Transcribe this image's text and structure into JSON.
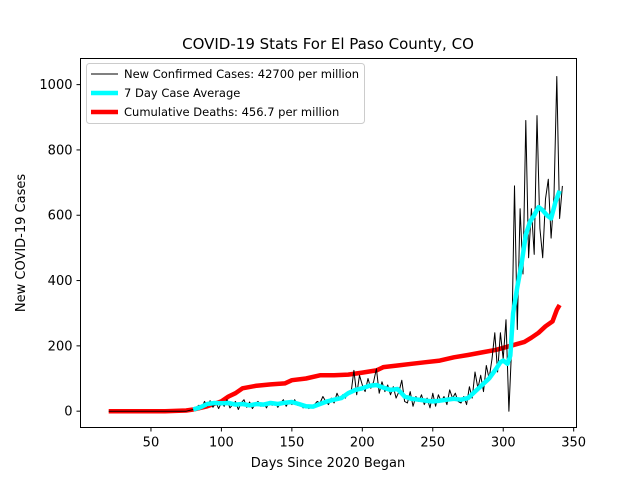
{
  "chart_data": {
    "type": "line",
    "title": "COVID-19 Stats For El Paso County, CO",
    "xlabel": "Days Since 2020 Began",
    "ylabel": "New COVID-19 Cases",
    "xlim": [
      0,
      352
    ],
    "ylim": [
      -50,
      1080
    ],
    "xticks": [
      50,
      100,
      150,
      200,
      250,
      300,
      350
    ],
    "yticks": [
      0,
      200,
      400,
      600,
      800,
      1000
    ],
    "grid": false,
    "legend_position": "top-left",
    "series": [
      {
        "name": "New Confirmed Cases: 42700 per million",
        "color": "#000000",
        "style": "thin-line",
        "points": [
          [
            20,
            0
          ],
          [
            60,
            0
          ],
          [
            75,
            0
          ],
          [
            80,
            5
          ],
          [
            84,
            18
          ],
          [
            86,
            10
          ],
          [
            88,
            30
          ],
          [
            90,
            15
          ],
          [
            92,
            32
          ],
          [
            94,
            12
          ],
          [
            96,
            28
          ],
          [
            98,
            8
          ],
          [
            100,
            26
          ],
          [
            102,
            15
          ],
          [
            104,
            35
          ],
          [
            106,
            10
          ],
          [
            108,
            20
          ],
          [
            110,
            30
          ],
          [
            112,
            5
          ],
          [
            114,
            25
          ],
          [
            116,
            35
          ],
          [
            118,
            12
          ],
          [
            120,
            28
          ],
          [
            122,
            8
          ],
          [
            124,
            22
          ],
          [
            126,
            30
          ],
          [
            128,
            15
          ],
          [
            130,
            25
          ],
          [
            132,
            10
          ],
          [
            134,
            30
          ],
          [
            136,
            18
          ],
          [
            138,
            28
          ],
          [
            140,
            12
          ],
          [
            142,
            25
          ],
          [
            144,
            35
          ],
          [
            146,
            15
          ],
          [
            148,
            30
          ],
          [
            150,
            20
          ],
          [
            152,
            35
          ],
          [
            154,
            18
          ],
          [
            156,
            25
          ],
          [
            158,
            10
          ],
          [
            160,
            18
          ],
          [
            162,
            8
          ],
          [
            164,
            15
          ],
          [
            166,
            20
          ],
          [
            168,
            30
          ],
          [
            170,
            25
          ],
          [
            172,
            45
          ],
          [
            174,
            30
          ],
          [
            176,
            20
          ],
          [
            178,
            40
          ],
          [
            180,
            25
          ],
          [
            182,
            55
          ],
          [
            184,
            35
          ],
          [
            186,
            50
          ],
          [
            188,
            40
          ],
          [
            190,
            60
          ],
          [
            192,
            55
          ],
          [
            194,
            125
          ],
          [
            196,
            50
          ],
          [
            198,
            110
          ],
          [
            200,
            80
          ],
          [
            202,
            60
          ],
          [
            204,
            100
          ],
          [
            206,
            70
          ],
          [
            208,
            90
          ],
          [
            210,
            130
          ],
          [
            212,
            55
          ],
          [
            214,
            90
          ],
          [
            216,
            60
          ],
          [
            218,
            80
          ],
          [
            220,
            50
          ],
          [
            222,
            75
          ],
          [
            224,
            40
          ],
          [
            226,
            60
          ],
          [
            228,
            95
          ],
          [
            230,
            30
          ],
          [
            232,
            25
          ],
          [
            234,
            60
          ],
          [
            236,
            15
          ],
          [
            238,
            45
          ],
          [
            240,
            30
          ],
          [
            242,
            50
          ],
          [
            244,
            20
          ],
          [
            246,
            40
          ],
          [
            248,
            10
          ],
          [
            250,
            55
          ],
          [
            252,
            15
          ],
          [
            254,
            50
          ],
          [
            256,
            30
          ],
          [
            258,
            45
          ],
          [
            260,
            20
          ],
          [
            262,
            65
          ],
          [
            264,
            40
          ],
          [
            266,
            55
          ],
          [
            268,
            30
          ],
          [
            270,
            25
          ],
          [
            272,
            45
          ],
          [
            274,
            20
          ],
          [
            276,
            75
          ],
          [
            278,
            40
          ],
          [
            280,
            120
          ],
          [
            282,
            70
          ],
          [
            284,
            110
          ],
          [
            286,
            60
          ],
          [
            288,
            140
          ],
          [
            290,
            100
          ],
          [
            292,
            160
          ],
          [
            294,
            240
          ],
          [
            296,
            120
          ],
          [
            298,
            240
          ],
          [
            300,
            160
          ],
          [
            302,
            280
          ],
          [
            304,
            0
          ],
          [
            306,
            200
          ],
          [
            308,
            690
          ],
          [
            310,
            250
          ],
          [
            312,
            620
          ],
          [
            314,
            420
          ],
          [
            316,
            890
          ],
          [
            318,
            470
          ],
          [
            320,
            620
          ],
          [
            322,
            480
          ],
          [
            324,
            905
          ],
          [
            326,
            560
          ],
          [
            328,
            470
          ],
          [
            330,
            650
          ],
          [
            332,
            710
          ],
          [
            334,
            530
          ],
          [
            336,
            660
          ],
          [
            338,
            1025
          ],
          [
            340,
            590
          ],
          [
            342,
            690
          ]
        ]
      },
      {
        "name": "7 Day Case Average",
        "color": "#00ffff",
        "style": "thick-line",
        "points": [
          [
            80,
            5
          ],
          [
            85,
            12
          ],
          [
            90,
            22
          ],
          [
            95,
            25
          ],
          [
            100,
            24
          ],
          [
            105,
            25
          ],
          [
            110,
            20
          ],
          [
            115,
            22
          ],
          [
            120,
            18
          ],
          [
            125,
            22
          ],
          [
            130,
            20
          ],
          [
            135,
            25
          ],
          [
            140,
            22
          ],
          [
            145,
            26
          ],
          [
            150,
            28
          ],
          [
            155,
            22
          ],
          [
            160,
            15
          ],
          [
            165,
            14
          ],
          [
            170,
            22
          ],
          [
            175,
            30
          ],
          [
            180,
            35
          ],
          [
            185,
            40
          ],
          [
            190,
            55
          ],
          [
            195,
            65
          ],
          [
            200,
            70
          ],
          [
            205,
            78
          ],
          [
            210,
            80
          ],
          [
            215,
            72
          ],
          [
            220,
            65
          ],
          [
            225,
            68
          ],
          [
            230,
            45
          ],
          [
            235,
            38
          ],
          [
            240,
            35
          ],
          [
            245,
            32
          ],
          [
            250,
            30
          ],
          [
            255,
            32
          ],
          [
            260,
            35
          ],
          [
            265,
            38
          ],
          [
            270,
            35
          ],
          [
            275,
            40
          ],
          [
            280,
            60
          ],
          [
            285,
            80
          ],
          [
            290,
            100
          ],
          [
            295,
            130
          ],
          [
            298,
            150
          ],
          [
            300,
            155
          ],
          [
            303,
            145
          ],
          [
            305,
            170
          ],
          [
            307,
            300
          ],
          [
            310,
            380
          ],
          [
            313,
            450
          ],
          [
            316,
            540
          ],
          [
            319,
            580
          ],
          [
            322,
            600
          ],
          [
            325,
            625
          ],
          [
            328,
            615
          ],
          [
            331,
            600
          ],
          [
            334,
            590
          ],
          [
            337,
            640
          ],
          [
            340,
            675
          ]
        ]
      },
      {
        "name": "Cumulative Deaths: 456.7 per million",
        "color": "#ff0000",
        "style": "thick-line",
        "points": [
          [
            20,
            0
          ],
          [
            40,
            0
          ],
          [
            60,
            0
          ],
          [
            75,
            2
          ],
          [
            80,
            5
          ],
          [
            90,
            15
          ],
          [
            100,
            30
          ],
          [
            105,
            45
          ],
          [
            110,
            55
          ],
          [
            115,
            70
          ],
          [
            125,
            78
          ],
          [
            135,
            82
          ],
          [
            145,
            85
          ],
          [
            150,
            95
          ],
          [
            160,
            100
          ],
          [
            170,
            110
          ],
          [
            180,
            110
          ],
          [
            190,
            112
          ],
          [
            200,
            118
          ],
          [
            210,
            125
          ],
          [
            215,
            135
          ],
          [
            225,
            140
          ],
          [
            235,
            145
          ],
          [
            245,
            150
          ],
          [
            255,
            155
          ],
          [
            265,
            165
          ],
          [
            275,
            172
          ],
          [
            285,
            180
          ],
          [
            295,
            188
          ],
          [
            305,
            200
          ],
          [
            315,
            212
          ],
          [
            320,
            225
          ],
          [
            325,
            240
          ],
          [
            330,
            260
          ],
          [
            335,
            275
          ],
          [
            338,
            310
          ],
          [
            340,
            325
          ]
        ]
      }
    ]
  }
}
